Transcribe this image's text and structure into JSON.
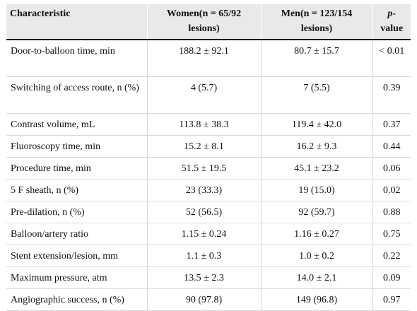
{
  "table": {
    "headers": {
      "characteristic": "Characteristic",
      "women": "Women(n = 65/92 lesions)",
      "men": "Men(n = 123/154 lesions)",
      "p_italic": "p",
      "p_rest": "-value"
    },
    "rows": [
      {
        "characteristic": "Door-to-balloon time, min",
        "women": "188.2 ± 92.1",
        "men": "80.7 ± 15.7",
        "p": "< 0.01"
      },
      {
        "characteristic": "Switching of access route, n (%)",
        "women": "4 (5.7)",
        "men": "7 (5.5)",
        "p": "0.39"
      },
      {
        "characteristic": "Contrast volume, mL",
        "women": "113.8 ± 38.3",
        "men": "119.4 ± 42.0",
        "p": "0.37"
      },
      {
        "characteristic": "Fluoroscopy time, min",
        "women": "15.2 ± 8.1",
        "men": "16.2 ± 9.3",
        "p": "0.44"
      },
      {
        "characteristic": "Procedure time, min",
        "women": "51.5 ± 19.5",
        "men": "45.1 ± 23.2",
        "p": "0.06"
      },
      {
        "characteristic": "5 F sheath, n (%)",
        "women": "23 (33.3)",
        "men": "19 (15.0)",
        "p": "0.02"
      },
      {
        "characteristic": "Pre-dilation, n (%)",
        "women": "52 (56.5)",
        "men": "92 (59.7)",
        "p": "0.88"
      },
      {
        "characteristic": "Balloon/artery ratio",
        "women": "1.15 ± 0.24",
        "men": "1.16 ± 0.27",
        "p": "0.75"
      },
      {
        "characteristic": "Stent extension/lesion, mm",
        "women": "1.1 ± 0.3",
        "men": "1.0 ± 0.2",
        "p": "0.22"
      },
      {
        "characteristic": "Maximum pressure, atm",
        "women": "13.5 ± 2.3",
        "men": "14.0 ± 2.1",
        "p": "0.09"
      },
      {
        "characteristic": "Angiographic success, n (%)",
        "women": "90 (97.8)",
        "men": "149 (96.8)",
        "p": "0.97"
      }
    ]
  }
}
